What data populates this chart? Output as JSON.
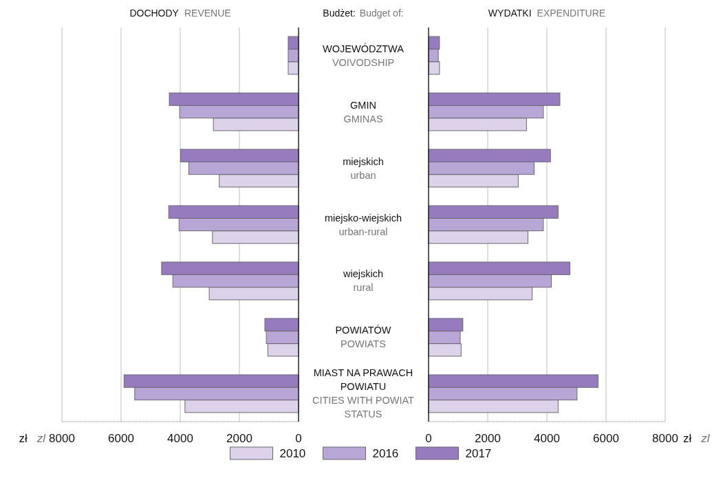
{
  "chart_data": [
    {
      "type": "bar",
      "orientation": "horizontal",
      "title": "DOCHODY REVENUE",
      "xlabel": "zł zl",
      "annotations": [
        "Budżet: Budget of:"
      ],
      "categories": [
        "WOJEWÓDZTWA\nVOIVODSHIP",
        "GMIN\nGMINAS",
        "miejskich\nurban",
        "miejsko-wiejskich\nurban-rural",
        "wiejskich\nrural",
        "POWIATÓW\nPOWIATS",
        "MIAST NA PRAWACH POWIATU\nCITIES WITH POWIAT STATUS"
      ],
      "series": [
        {
          "name": "2010",
          "color": "#dcd3ea",
          "values": [
            350,
            2880,
            2680,
            2910,
            3020,
            1040,
            3840
          ]
        },
        {
          "name": "2016",
          "color": "#b8a6d6",
          "values": [
            350,
            4020,
            3710,
            4040,
            4250,
            1090,
            5540
          ]
        },
        {
          "name": "2017",
          "color": "#967bbf",
          "values": [
            350,
            4370,
            3990,
            4390,
            4630,
            1140,
            5900
          ]
        }
      ],
      "xlim": [
        8000,
        0
      ],
      "xticks": [
        8000,
        6000,
        4000,
        2000,
        0
      ],
      "grid": "x",
      "legend": "bottom"
    },
    {
      "type": "bar",
      "orientation": "horizontal",
      "title": "WYDATKI EXPENDITURE",
      "xlabel": "zł zl",
      "series": [
        {
          "color": "#dcd3ea",
          "values": [
            370,
            3310,
            3030,
            3360,
            3500,
            1100,
            4380
          ]
        },
        {
          "color": "#b8a6d6",
          "values": [
            330,
            3880,
            3570,
            3880,
            4150,
            1070,
            5020
          ]
        },
        {
          "color": "#967bbf",
          "values": [
            370,
            4440,
            4120,
            4380,
            4780,
            1160,
            5730
          ]
        }
      ],
      "xlim": [
        0,
        8000
      ],
      "xticks": [
        0,
        2000,
        4000,
        6000,
        8000
      ],
      "grid": "x",
      "tick_labels": "x"
    }
  ]
}
